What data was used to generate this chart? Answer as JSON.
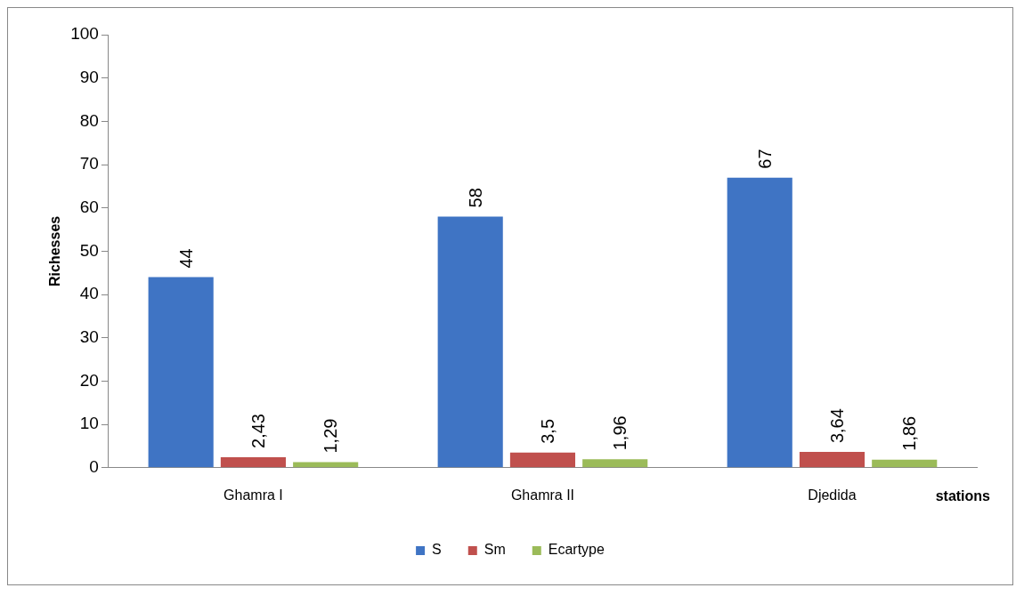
{
  "chart_data": {
    "type": "bar",
    "xlabel": "stations",
    "ylabel": "Richesses",
    "categories": [
      "Ghamra I",
      "Ghamra II",
      "Djedida"
    ],
    "series": [
      {
        "name": "S",
        "color": "#3f74c4",
        "values": [
          44,
          58,
          67
        ],
        "value_labels": [
          "44",
          "58",
          "67"
        ]
      },
      {
        "name": "Sm",
        "color": "#c0504d",
        "values": [
          2.43,
          3.5,
          3.64
        ],
        "value_labels": [
          "2,43",
          "3,5",
          "3,64"
        ]
      },
      {
        "name": "Ecartype",
        "color": "#9bbb59",
        "values": [
          1.29,
          1.96,
          1.86
        ],
        "value_labels": [
          "1,29",
          "1,96",
          "1,86"
        ]
      }
    ],
    "ylim": [
      0,
      100
    ],
    "yticks": [
      0,
      10,
      20,
      30,
      40,
      50,
      60,
      70,
      80,
      90,
      100
    ],
    "grid": false,
    "legend": "bottom"
  }
}
